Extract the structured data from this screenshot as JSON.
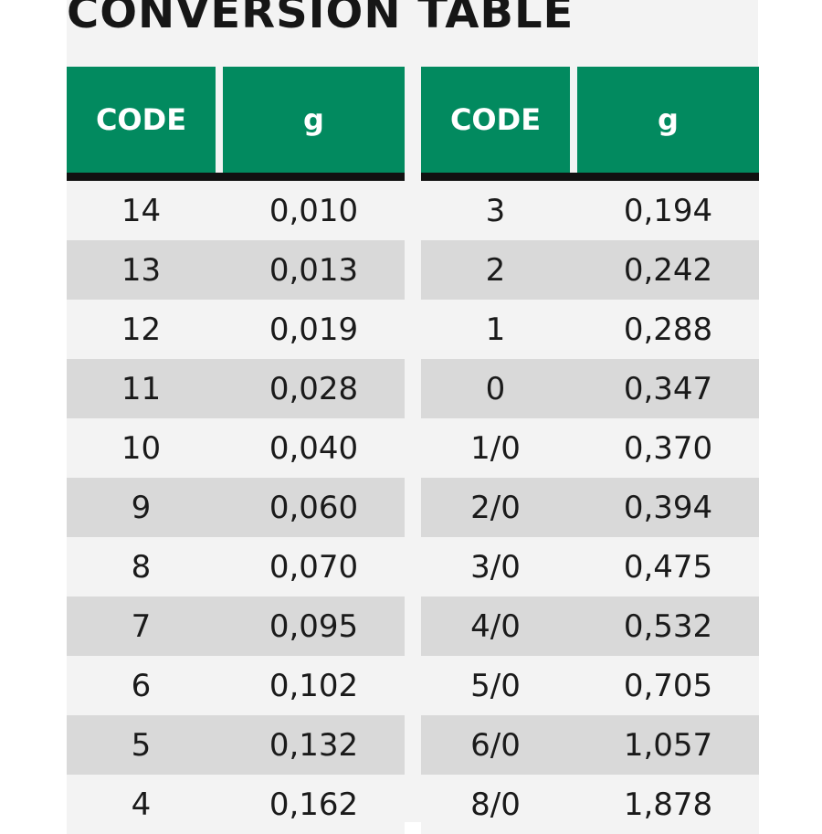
{
  "title": "CONVERSION TABLE",
  "colors": {
    "header_bg": "#028a5f",
    "header_text": "#ffffff",
    "row_alt": "#d9d9d9",
    "row_base": "#f3f3f3"
  },
  "tables": [
    {
      "headers": [
        "CODE",
        "g"
      ],
      "rows": [
        [
          "14",
          "0,010"
        ],
        [
          "13",
          "0,013"
        ],
        [
          "12",
          "0,019"
        ],
        [
          "11",
          "0,028"
        ],
        [
          "10",
          "0,040"
        ],
        [
          "9",
          "0,060"
        ],
        [
          "8",
          "0,070"
        ],
        [
          "7",
          "0,095"
        ],
        [
          "6",
          "0,102"
        ],
        [
          "5",
          "0,132"
        ],
        [
          "4",
          "0,162"
        ]
      ]
    },
    {
      "headers": [
        "CODE",
        "g"
      ],
      "rows": [
        [
          "3",
          "0,194"
        ],
        [
          "2",
          "0,242"
        ],
        [
          "1",
          "0,288"
        ],
        [
          "0",
          "0,347"
        ],
        [
          "1/0",
          "0,370"
        ],
        [
          "2/0",
          "0,394"
        ],
        [
          "3/0",
          "0,475"
        ],
        [
          "4/0",
          "0,532"
        ],
        [
          "5/0",
          "0,705"
        ],
        [
          "6/0",
          "1,057"
        ],
        [
          "8/0",
          "1,878"
        ]
      ]
    }
  ]
}
